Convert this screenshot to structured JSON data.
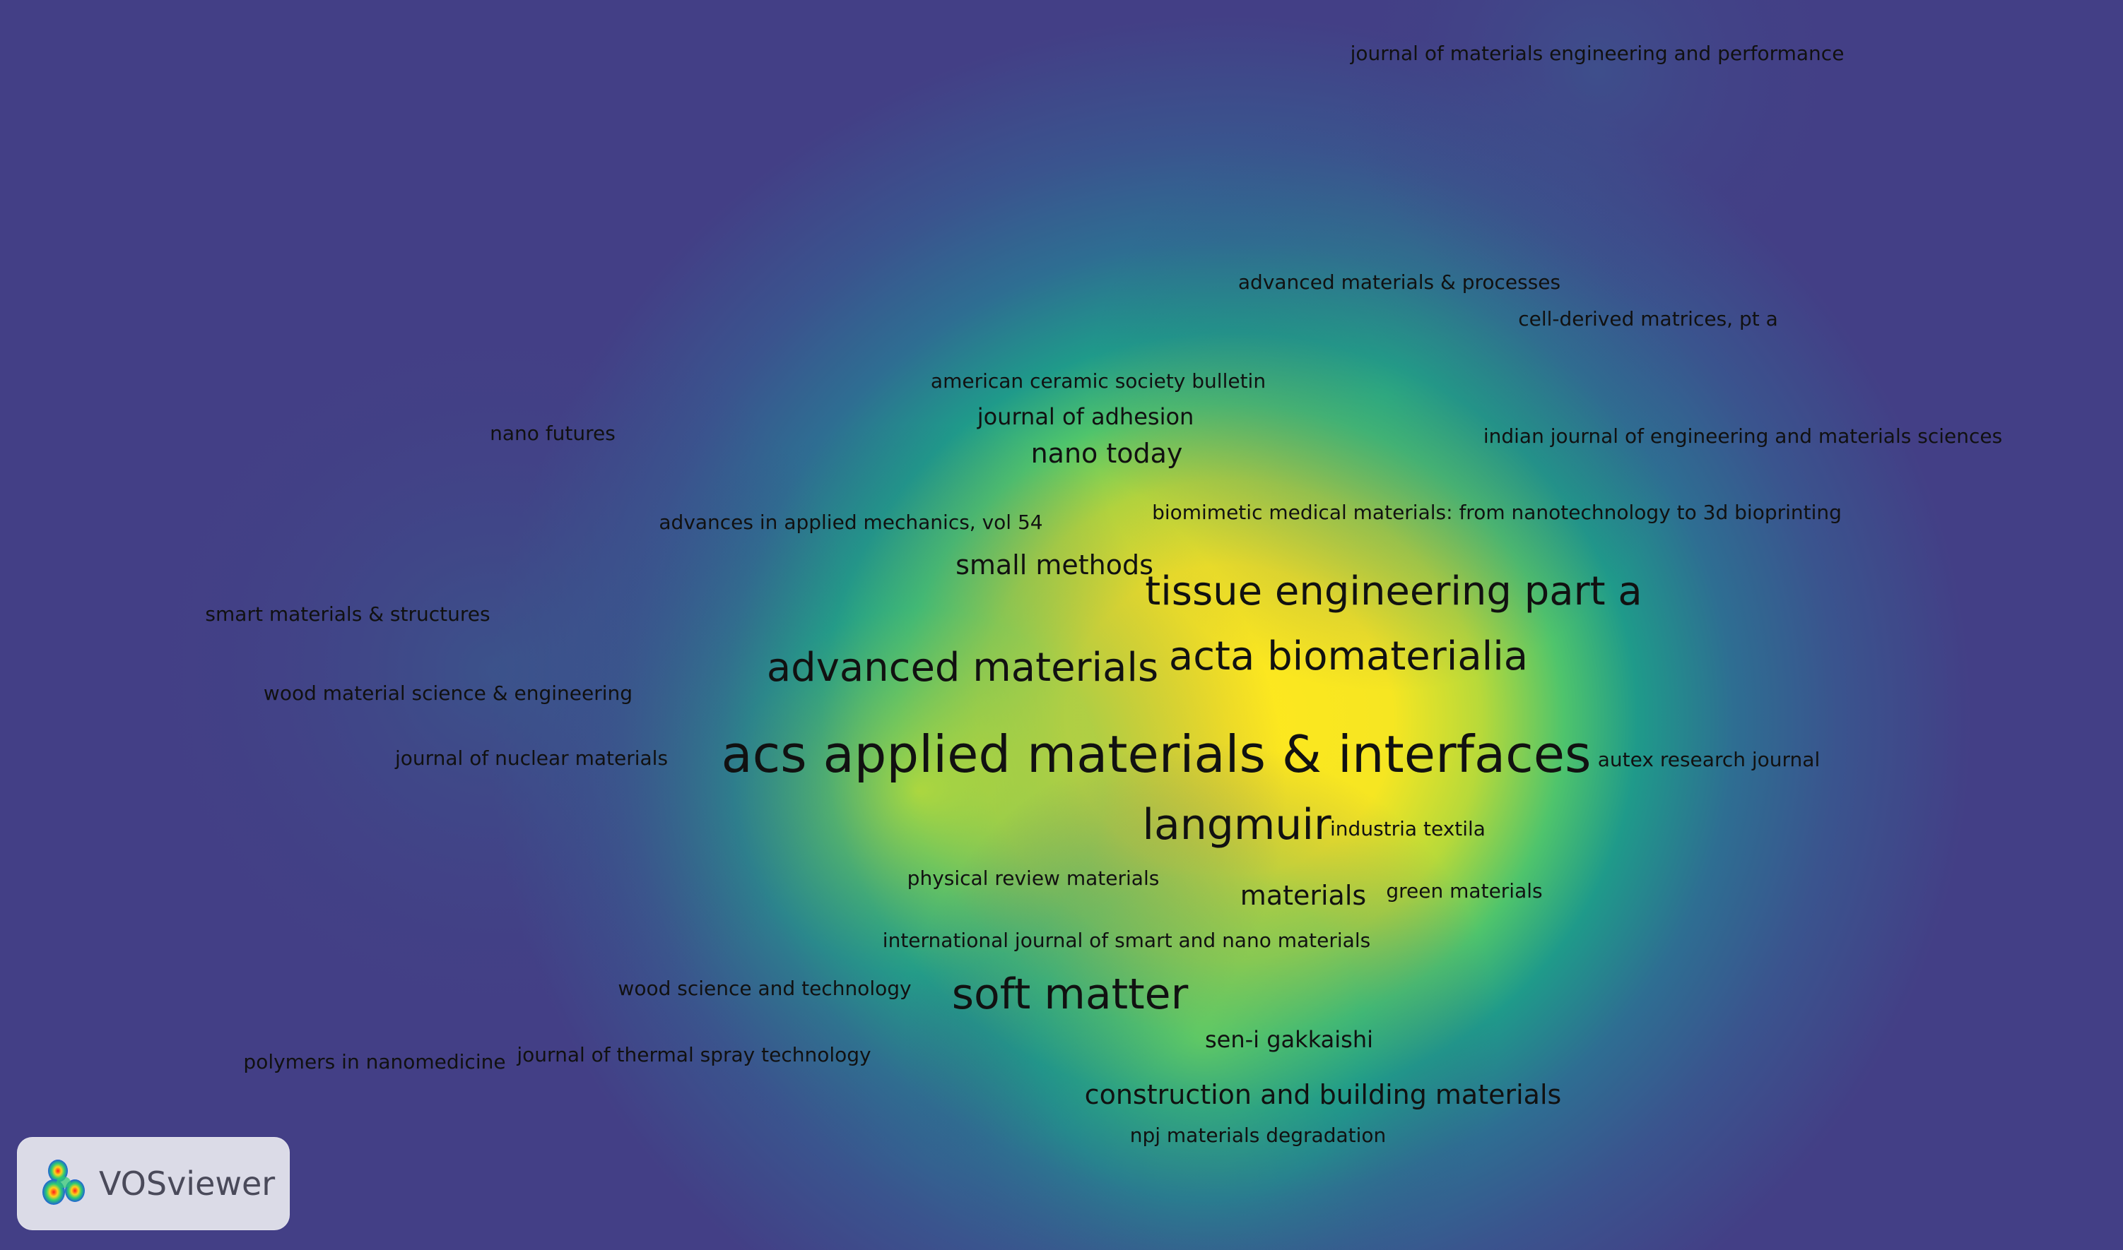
{
  "logo": {
    "text": "VOSviewer",
    "icon": "vosviewer-logo-icon"
  },
  "colors": {
    "background": "#433f86",
    "density_low": "#3b5a92",
    "density_mid": "#1f9a8a",
    "density_high": "#a4d646",
    "density_peak": "#ffe71e",
    "label": "#111111"
  },
  "labels": [
    {
      "id": "jmep",
      "text": "journal of materials engineering and performance"
    },
    {
      "id": "amp",
      "text": "advanced materials & processes"
    },
    {
      "id": "cdm",
      "text": "cell-derived matrices, pt a"
    },
    {
      "id": "acsb",
      "text": "american ceramic society bulletin"
    },
    {
      "id": "nanofut",
      "text": "nano futures"
    },
    {
      "id": "jadh",
      "text": "journal of adhesion"
    },
    {
      "id": "ijems",
      "text": "indian journal of engineering and materials sciences"
    },
    {
      "id": "nanotoday",
      "text": "nano today"
    },
    {
      "id": "aam",
      "text": "advances in applied mechanics, vol 54"
    },
    {
      "id": "bmm",
      "text": "biomimetic medical materials: from nanotechnology to 3d bioprinting"
    },
    {
      "id": "smallm",
      "text": "small methods"
    },
    {
      "id": "smstr",
      "text": "smart materials & structures"
    },
    {
      "id": "tepa",
      "text": "tissue engineering part a"
    },
    {
      "id": "actab",
      "text": "acta biomaterialia"
    },
    {
      "id": "advmat",
      "text": "advanced materials"
    },
    {
      "id": "wmse",
      "text": "wood material science & engineering"
    },
    {
      "id": "jnm",
      "text": "journal of nuclear materials"
    },
    {
      "id": "acsami",
      "text": "acs applied materials & interfaces"
    },
    {
      "id": "autex",
      "text": "autex research journal"
    },
    {
      "id": "langmuir",
      "text": "langmuir"
    },
    {
      "id": "indtex",
      "text": "industria textila"
    },
    {
      "id": "prm",
      "text": "physical review materials"
    },
    {
      "id": "materials",
      "text": "materials"
    },
    {
      "id": "greenmat",
      "text": "green materials"
    },
    {
      "id": "ijsnm",
      "text": "international journal of smart and nano materials"
    },
    {
      "id": "wst",
      "text": "wood science and technology"
    },
    {
      "id": "softmatter",
      "text": "soft matter"
    },
    {
      "id": "polynano",
      "text": "polymers in nanomedicine"
    },
    {
      "id": "jtst",
      "text": "journal of thermal spray technology"
    },
    {
      "id": "seni",
      "text": "sen-i gakkaishi"
    },
    {
      "id": "cbm",
      "text": "construction and building materials"
    },
    {
      "id": "npj",
      "text": "npj materials degradation"
    }
  ]
}
